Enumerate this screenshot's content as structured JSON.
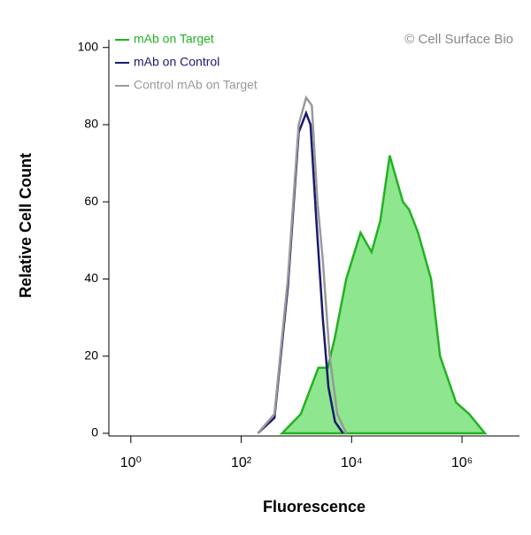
{
  "chart_data": {
    "type": "histogram-overlay",
    "xlabel": "Fluorescence",
    "ylabel": "Relative Cell Count",
    "annotation": "© Cell Surface Bio",
    "xscale": "log",
    "xlim": [
      0.4,
      11000000
    ],
    "ylim": [
      0,
      102
    ],
    "xticks": [
      {
        "value": 1,
        "label": "10⁰"
      },
      {
        "value": 100,
        "label": "10²"
      },
      {
        "value": 10000,
        "label": "10⁴"
      },
      {
        "value": 1000000,
        "label": "10⁶"
      }
    ],
    "yticks": [
      0,
      20,
      40,
      60,
      80,
      100
    ],
    "legend": "top-left",
    "series": [
      {
        "name": "mAb on Target",
        "color": "#22b222",
        "fill": "#8ee68e",
        "x": [
          550,
          1200,
          2500,
          3700,
          5000,
          8000,
          14500,
          23000,
          33000,
          49000,
          85000,
          110000,
          160000,
          275000,
          400000,
          780000,
          1350000,
          2600000
        ],
        "values": [
          0,
          5,
          17,
          17,
          25,
          40,
          52,
          47,
          55,
          72,
          60,
          58,
          52,
          40,
          20,
          8,
          5,
          0
        ]
      },
      {
        "name": "mAb on Control",
        "color": "#1a1a6e",
        "x": [
          200,
          400,
          700,
          1100,
          1500,
          1800,
          2300,
          3000,
          3800,
          5000,
          7000
        ],
        "values": [
          0,
          4,
          38,
          78,
          83,
          80,
          55,
          30,
          12,
          3,
          0
        ]
      },
      {
        "name": "Control mAb on Target",
        "color": "#999999",
        "x": [
          200,
          400,
          700,
          1100,
          1500,
          1900,
          2400,
          3000,
          4000,
          5500,
          8000
        ],
        "values": [
          0,
          5,
          40,
          80,
          87,
          85,
          60,
          45,
          20,
          5,
          0
        ]
      }
    ]
  }
}
